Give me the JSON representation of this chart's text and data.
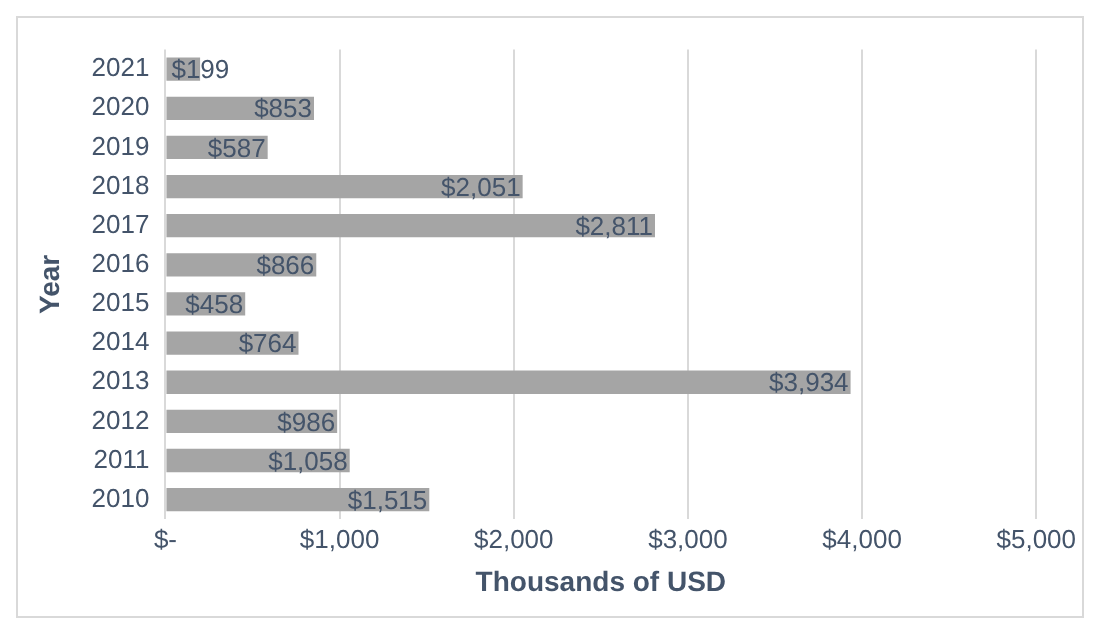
{
  "chart_data": {
    "type": "bar",
    "orientation": "horizontal",
    "xlabel": "Thousands of USD",
    "ylabel": "Year",
    "categories": [
      "2021",
      "2020",
      "2019",
      "2018",
      "2017",
      "2016",
      "2015",
      "2014",
      "2013",
      "2012",
      "2011",
      "2010"
    ],
    "values": [
      199,
      853,
      587,
      2051,
      2811,
      866,
      458,
      764,
      3934,
      986,
      1058,
      1515
    ],
    "value_labels": [
      "$199",
      "$853",
      "$587",
      "$2,051",
      "$2,811",
      "$866",
      "$458",
      "$764",
      "$3,934",
      "$986",
      "$1,058",
      "$1,515"
    ],
    "color": "#a5a5a5",
    "xlim": [
      0,
      5000
    ],
    "xticks": [
      {
        "value": 0,
        "label": "$-"
      },
      {
        "value": 1000,
        "label": "$1,000"
      },
      {
        "value": 2000,
        "label": "$2,000"
      },
      {
        "value": 3000,
        "label": "$3,000"
      },
      {
        "value": 4000,
        "label": "$4,000"
      },
      {
        "value": 5000,
        "label": "$5,000"
      }
    ],
    "grid": "x",
    "legend": false
  }
}
